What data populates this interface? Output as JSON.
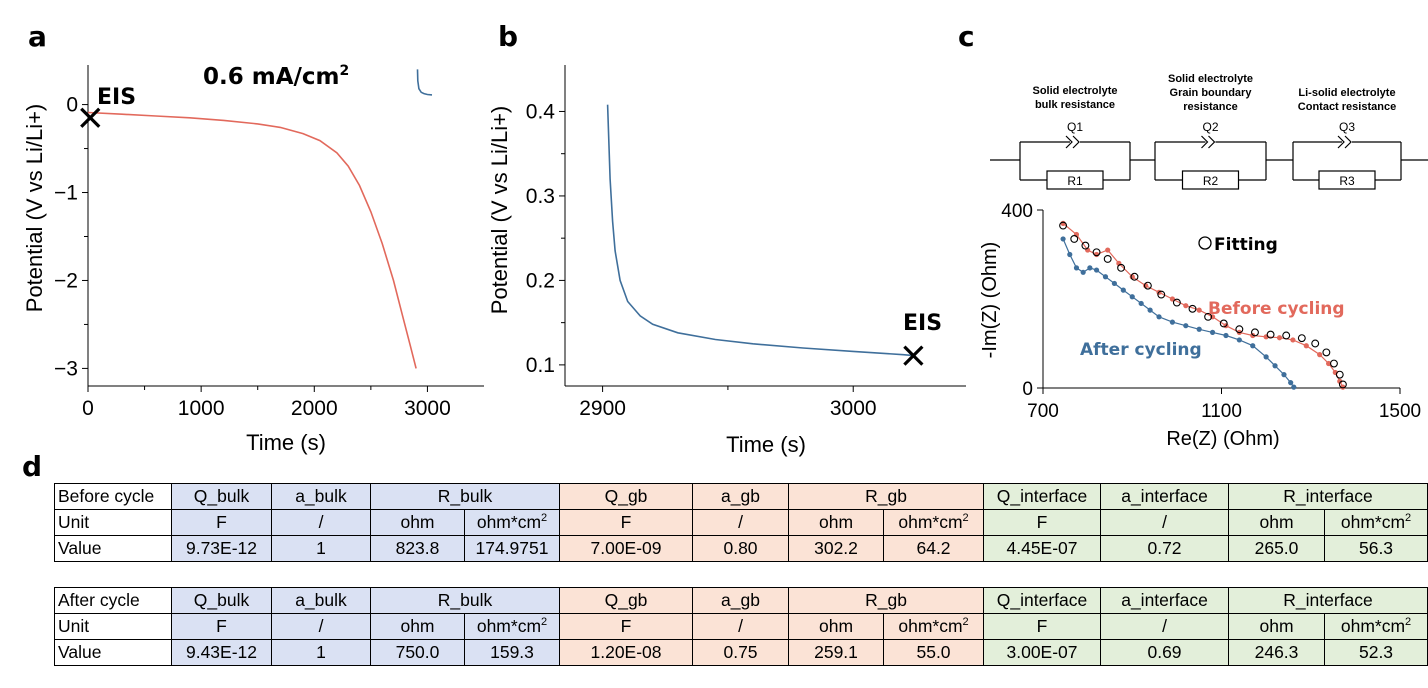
{
  "panel_labels": {
    "a": "a",
    "b": "b",
    "c": "c",
    "d": "d"
  },
  "colors": {
    "red_curve": "#e2695c",
    "blue_curve": "#3f6f9b",
    "fit_marker": "#000000",
    "bulk_fill": "#dae1f3",
    "gb_fill": "#fbe3d6",
    "interface_fill": "#e3efda"
  },
  "chart_data": [
    {
      "panel": "a",
      "type": "line",
      "annotations": {
        "eis": "EIS",
        "current": "0.6 mA/cm",
        "current_sup": "2"
      },
      "xlabel": "Time (s)",
      "ylabel": "Potential (V vs Li/Li+)",
      "xlim": [
        0,
        3500
      ],
      "ylim": [
        -3.2,
        0.45
      ],
      "x_ticks": [
        "0",
        "1000",
        "2000",
        "3000"
      ],
      "y_ticks": [
        "0",
        "−1",
        "−2",
        "−3"
      ],
      "x_tick_values": [
        0,
        1000,
        2000,
        3000
      ],
      "y_tick_values": [
        0,
        -1,
        -2,
        -3
      ],
      "eis_marker": {
        "x": 20,
        "y": -0.15
      },
      "series": [
        {
          "color": "red",
          "x": [
            0,
            300,
            600,
            900,
            1200,
            1500,
            1700,
            1900,
            2050,
            2200,
            2300,
            2400,
            2500,
            2600,
            2700,
            2780,
            2850,
            2900
          ],
          "y": [
            -0.09,
            -0.11,
            -0.13,
            -0.15,
            -0.18,
            -0.22,
            -0.26,
            -0.33,
            -0.41,
            -0.55,
            -0.7,
            -0.92,
            -1.22,
            -1.58,
            -2.0,
            -2.4,
            -2.75,
            -3.0
          ]
        },
        {
          "color": "blue",
          "x": [
            2912,
            2915,
            2925,
            2945,
            2970,
            3000,
            3040
          ],
          "y": [
            0.4,
            0.27,
            0.18,
            0.14,
            0.125,
            0.115,
            0.11
          ]
        }
      ]
    },
    {
      "panel": "b",
      "type": "line",
      "annotations": {
        "eis": "EIS"
      },
      "xlabel": "Time (s)",
      "ylabel": "Potential (V vs Li/Li+)",
      "xlim": [
        2885,
        3045
      ],
      "ylim": [
        0.075,
        0.455
      ],
      "x_ticks": [
        "2900",
        "3000"
      ],
      "y_ticks": [
        "0.1",
        "0.2",
        "0.3",
        "0.4"
      ],
      "x_tick_values": [
        2900,
        3000
      ],
      "y_tick_values": [
        0.1,
        0.2,
        0.3,
        0.4
      ],
      "eis_marker": {
        "x": 3024,
        "y": 0.111
      },
      "series": [
        {
          "color": "blue",
          "x": [
            2902,
            2903,
            2904,
            2905,
            2907,
            2910,
            2915,
            2920,
            2930,
            2945,
            2960,
            2980,
            3000,
            3020,
            3024
          ],
          "y": [
            0.408,
            0.32,
            0.27,
            0.235,
            0.2,
            0.175,
            0.158,
            0.148,
            0.138,
            0.13,
            0.125,
            0.12,
            0.116,
            0.112,
            0.111
          ]
        }
      ]
    },
    {
      "panel": "c",
      "type": "scatter",
      "circuit": {
        "elements": [
          {
            "title_lines": [
              "Solid electrolyte",
              "bulk resistance"
            ],
            "q": "Q1",
            "r": "R1"
          },
          {
            "title_lines": [
              "Solid electrolyte",
              "Grain boundary",
              "resistance"
            ],
            "q": "Q2",
            "r": "R2"
          },
          {
            "title_lines": [
              "Li-solid electrolyte",
              "Contact resistance"
            ],
            "q": "Q3",
            "r": "R3"
          }
        ]
      },
      "xlabel": "Re(Z) (Ohm)",
      "ylabel": "-Im(Z) (Ohm)",
      "xlim": [
        700,
        1500
      ],
      "ylim": [
        0,
        400
      ],
      "x_ticks": [
        "700",
        "1100",
        "1500"
      ],
      "y_ticks": [
        "0",
        "400"
      ],
      "x_tick_values": [
        700,
        1100,
        1500
      ],
      "y_tick_values": [
        0,
        400
      ],
      "legend": {
        "fitting": "Fitting",
        "before": "Before cycling",
        "after": "After cycling"
      },
      "series": [
        {
          "name": "Before cycling",
          "color": "red",
          "x": [
            745,
            775,
            800,
            820,
            845,
            870,
            900,
            930,
            960,
            990,
            1020,
            1050,
            1080,
            1110,
            1140,
            1170,
            1200,
            1230,
            1260,
            1290,
            1320,
            1340,
            1355,
            1365,
            1372
          ],
          "y": [
            370,
            345,
            310,
            300,
            310,
            280,
            250,
            230,
            215,
            200,
            185,
            175,
            160,
            140,
            125,
            118,
            115,
            113,
            108,
            95,
            75,
            55,
            35,
            15,
            2
          ]
        },
        {
          "name": "After cycling",
          "color": "blue",
          "x": [
            745,
            760,
            775,
            790,
            805,
            820,
            840,
            860,
            880,
            900,
            920,
            940,
            960,
            990,
            1020,
            1050,
            1080,
            1110,
            1140,
            1170,
            1200,
            1220,
            1240,
            1255,
            1262
          ],
          "y": [
            335,
            300,
            270,
            260,
            270,
            265,
            250,
            235,
            220,
            205,
            190,
            175,
            160,
            148,
            140,
            132,
            125,
            118,
            108,
            95,
            70,
            50,
            30,
            12,
            2
          ]
        },
        {
          "name": "Fitting",
          "color": "black",
          "marker": "open-circle",
          "x": [
            745,
            770,
            795,
            820,
            845,
            875,
            905,
            935,
            965,
            1000,
            1035,
            1070,
            1105,
            1140,
            1175,
            1210,
            1245,
            1280,
            1310,
            1335,
            1352,
            1365,
            1372
          ],
          "y": [
            365,
            335,
            320,
            305,
            290,
            270,
            250,
            230,
            210,
            192,
            178,
            160,
            145,
            132,
            125,
            120,
            118,
            112,
            100,
            80,
            55,
            30,
            8
          ]
        }
      ]
    }
  ],
  "tables": [
    {
      "header": [
        "Before cycle",
        "Q_bulk",
        "a_bulk",
        "R_bulk",
        "Q_gb",
        "a_gb",
        "R_gb",
        "Q_interface",
        "a_interface",
        "R_interface"
      ],
      "unit_row": [
        "Unit",
        "F",
        "/",
        "ohm",
        "ohm*cm",
        "F",
        "/",
        "ohm",
        "ohm*cm",
        "F",
        "/",
        "ohm",
        "ohm*cm"
      ],
      "sup": "2",
      "value_row": [
        "Value",
        "9.73E-12",
        "1",
        "823.8",
        "174.9751",
        "7.00E-09",
        "0.80",
        "302.2",
        "64.2",
        "4.45E-07",
        "0.72",
        "265.0",
        "56.3"
      ]
    },
    {
      "header": [
        "After cycle",
        "Q_bulk",
        "a_bulk",
        "R_bulk",
        "Q_gb",
        "a_gb",
        "R_gb",
        "Q_interface",
        "a_interface",
        "R_interface"
      ],
      "unit_row": [
        "Unit",
        "F",
        "/",
        "ohm",
        "ohm*cm",
        "F",
        "/",
        "ohm",
        "ohm*cm",
        "F",
        "/",
        "ohm",
        "ohm*cm"
      ],
      "sup": "2",
      "value_row": [
        "Value",
        "9.43E-12",
        "1",
        "750.0",
        "159.3",
        "1.20E-08",
        "0.75",
        "259.1",
        "55.0",
        "3.00E-07",
        "0.69",
        "246.3",
        "52.3"
      ]
    }
  ]
}
